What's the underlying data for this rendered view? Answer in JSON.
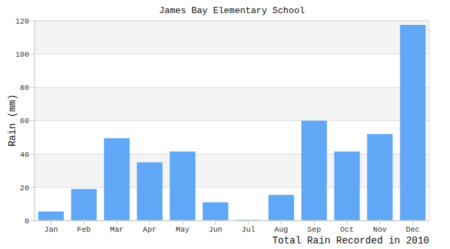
{
  "chart_data": {
    "type": "bar",
    "title": "James Bay Elementary School",
    "y_label": "Rain (mm)",
    "x_label": "Total Rain Recorded in 2010",
    "categories": [
      "Jan",
      "Feb",
      "Mar",
      "Apr",
      "May",
      "Jun",
      "Jul",
      "Aug",
      "Sep",
      "Oct",
      "Nov",
      "Dec"
    ],
    "values": [
      5.5,
      19,
      49.5,
      35,
      41.5,
      11,
      0.5,
      15.5,
      60,
      41.5,
      52,
      117.5
    ],
    "color": "#60a8f5",
    "ylim": [
      0,
      120
    ],
    "yticks": [
      0,
      20,
      40,
      60,
      80,
      100,
      120
    ],
    "grid": true
  }
}
